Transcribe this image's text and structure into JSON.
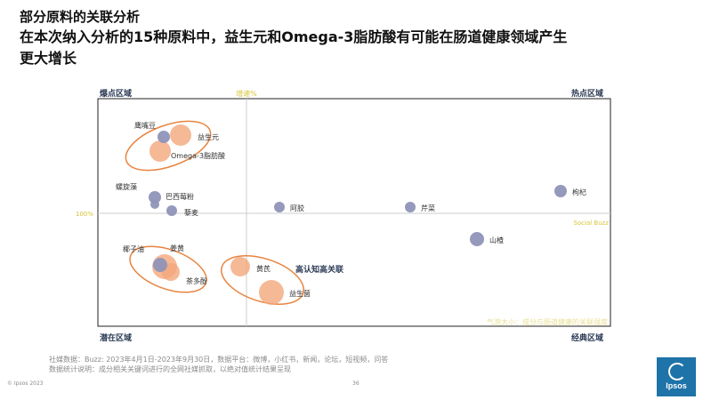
{
  "header": {
    "title": "部分原料的关联分析",
    "headline_line1": "在本次纳入分析的15种原料中，益生元和Omega-3脂肪酸有可能在肠道健康领域产生",
    "headline_line2": "更大增长"
  },
  "chart_data": {
    "type": "scatter",
    "quadrants": {
      "top_left": "爆点区域",
      "top_right": "热点区域",
      "bottom_left": "潜在区域",
      "bottom_right": "经典区域"
    },
    "axis_labels": {
      "growth": "增速%",
      "hundred": "100%",
      "buzz": "Social Buzz"
    },
    "points": [
      {
        "name": "鹰嘴豆",
        "series": "social"
      },
      {
        "name": "益生元",
        "series": "knowledge"
      },
      {
        "name": "Omega-3脂肪酸",
        "series": "knowledge"
      },
      {
        "name": "螺旋藻",
        "series": "social"
      },
      {
        "name": "巴西莓粉",
        "series": "social"
      },
      {
        "name": "藜麦",
        "series": "social"
      },
      {
        "name": "阿胶",
        "series": "social"
      },
      {
        "name": "芹菜",
        "series": "social"
      },
      {
        "name": "枸杞",
        "series": "social"
      },
      {
        "name": "山楂",
        "series": "social"
      },
      {
        "name": "椰子油",
        "series": "social"
      },
      {
        "name": "姜黄",
        "series": "knowledge"
      },
      {
        "name": "茶多酚",
        "series": "knowledge"
      },
      {
        "name": "黄芪",
        "series": "knowledge"
      },
      {
        "name": "益生菌",
        "series": "knowledge"
      }
    ],
    "annotation": "高认知高关联",
    "footnote_overlay": "气泡大小：成分与肠道健康的关联强度"
  },
  "colors": {
    "social": "#8f93b8",
    "knowledge": "#f4a87c",
    "ellipse": "#e8843f",
    "quadrant_label": "#2b3a55",
    "axis_label": "#d7c53a"
  },
  "footer": {
    "line1": "社媒数据：Buzz: 2023年4月1日-2023年9月30日，数据平台：微博，小红书，新闻，论坛，短视频，问答",
    "line2": "数据统计说明：成分相关关键词进行的全网社媒抓取，以绝对值统计结果呈现",
    "copyright": "© Ipsos 2023",
    "page": "36"
  },
  "logo": {
    "text": "Ipsos"
  }
}
